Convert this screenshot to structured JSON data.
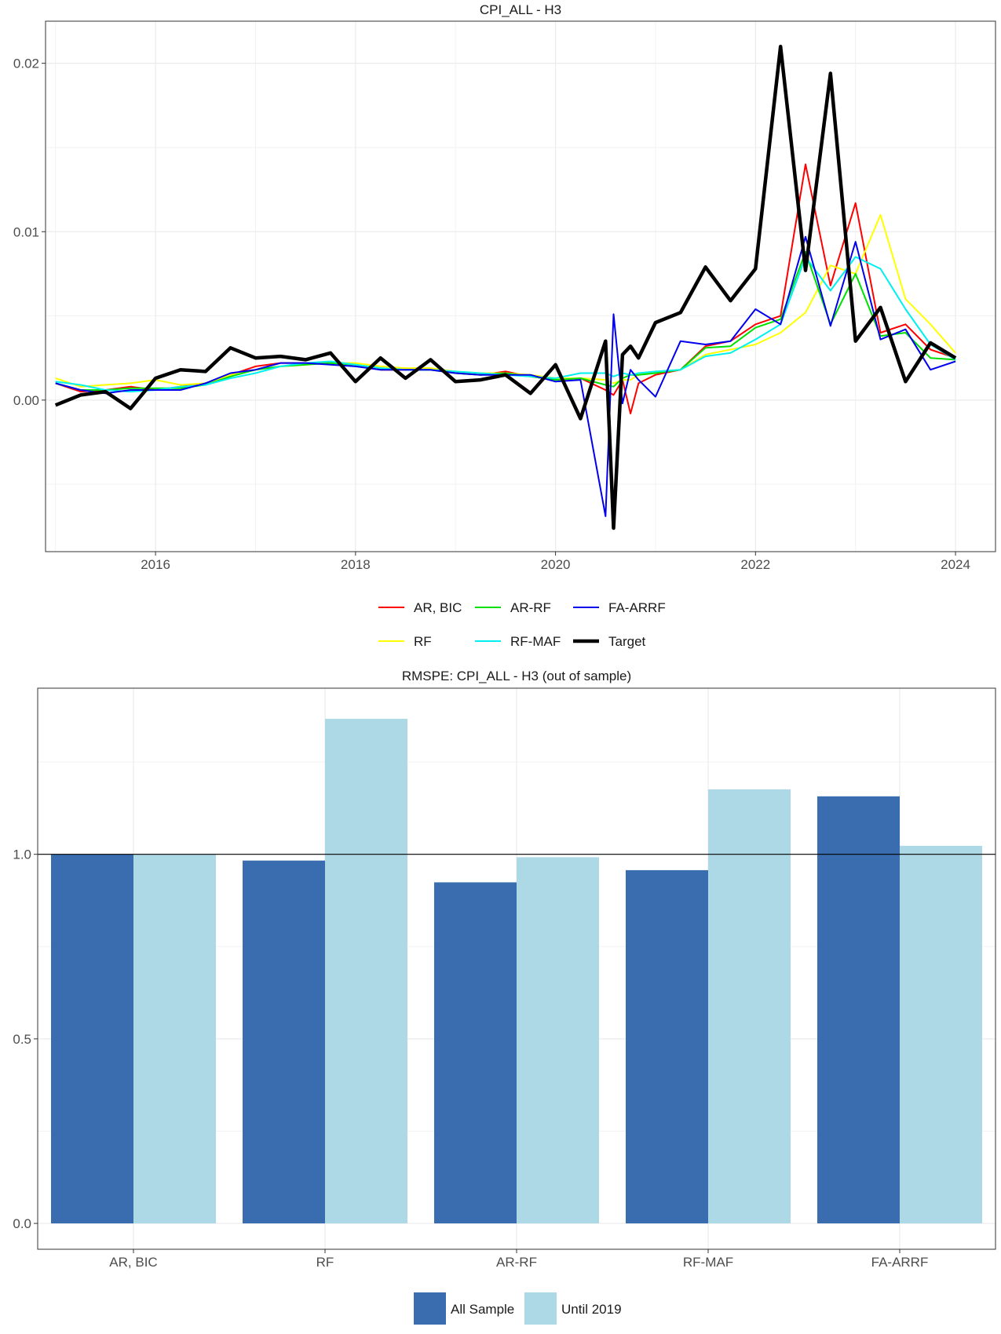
{
  "chart_data": [
    {
      "type": "line",
      "title": "CPI_ALL - H3",
      "xlabel": "",
      "ylabel": "",
      "xlim": [
        2014.9,
        2024.4
      ],
      "ylim": [
        -0.009,
        0.0225
      ],
      "x_ticks": [
        2016,
        2018,
        2020,
        2022,
        2024
      ],
      "x_tick_labels": [
        "2016",
        "2018",
        "2020",
        "2022",
        "2024"
      ],
      "y_ticks": [
        0.0,
        0.01,
        0.02
      ],
      "y_tick_labels": [
        "0.00",
        "0.01",
        "0.02"
      ],
      "grid": true,
      "legend_position": "bottom",
      "x": [
        2015.0,
        2015.25,
        2015.5,
        2015.75,
        2016.0,
        2016.25,
        2016.5,
        2016.75,
        2017.0,
        2017.25,
        2017.5,
        2017.75,
        2018.0,
        2018.25,
        2018.5,
        2018.75,
        2019.0,
        2019.25,
        2019.5,
        2019.75,
        2020.0,
        2020.25,
        2020.5,
        2020.58,
        2020.67,
        2020.75,
        2020.83,
        2021.0,
        2021.25,
        2021.5,
        2021.75,
        2022.0,
        2022.25,
        2022.5,
        2022.75,
        2023.0,
        2023.25,
        2023.5,
        2023.75,
        2024.0
      ],
      "series": [
        {
          "name": "AR, BIC",
          "color": "#ff0000",
          "width": 2,
          "values": [
            0.001,
            0.0005,
            0.0006,
            0.0008,
            0.0006,
            0.0008,
            0.001,
            0.0015,
            0.002,
            0.0022,
            0.0022,
            0.0022,
            0.0021,
            0.0018,
            0.0018,
            0.0018,
            0.0016,
            0.0015,
            0.0017,
            0.0014,
            0.0012,
            0.0013,
            0.0006,
            0.0003,
            0.0012,
            -0.0008,
            0.001,
            0.0015,
            0.0018,
            0.0032,
            0.0035,
            0.0045,
            0.005,
            0.014,
            0.0068,
            0.0117,
            0.004,
            0.0045,
            0.003,
            0.0025
          ]
        },
        {
          "name": "RF",
          "color": "#ffff00",
          "width": 2,
          "values": [
            0.0013,
            0.0008,
            0.0009,
            0.001,
            0.0012,
            0.0009,
            0.001,
            0.0015,
            0.0018,
            0.002,
            0.0021,
            0.0022,
            0.0022,
            0.002,
            0.0019,
            0.0019,
            0.0017,
            0.0016,
            0.0016,
            0.0015,
            0.0013,
            0.0013,
            0.0012,
            0.001,
            0.0012,
            0.0012,
            0.0015,
            0.0017,
            0.0018,
            0.0027,
            0.003,
            0.0033,
            0.004,
            0.0052,
            0.008,
            0.0075,
            0.011,
            0.006,
            0.0045,
            0.0028
          ]
        },
        {
          "name": "AR-RF",
          "color": "#00e000",
          "width": 2,
          "values": [
            0.001,
            0.0006,
            0.0006,
            0.0007,
            0.0007,
            0.0007,
            0.0009,
            0.0014,
            0.0018,
            0.002,
            0.0021,
            0.0022,
            0.0021,
            0.0019,
            0.0018,
            0.0018,
            0.0016,
            0.0015,
            0.0016,
            0.0014,
            0.0012,
            0.0013,
            0.0009,
            0.0008,
            0.0013,
            0.0015,
            0.0015,
            0.0016,
            0.0018,
            0.0031,
            0.0032,
            0.0043,
            0.0048,
            0.0088,
            0.0045,
            0.0075,
            0.0038,
            0.004,
            0.0025,
            0.0024
          ]
        },
        {
          "name": "RF-MAF",
          "color": "#00f0f0",
          "width": 2,
          "values": [
            0.0011,
            0.0009,
            0.0006,
            0.0005,
            0.0006,
            0.0008,
            0.0009,
            0.0013,
            0.0016,
            0.002,
            0.0022,
            0.0023,
            0.0021,
            0.0019,
            0.0018,
            0.0018,
            0.0017,
            0.0016,
            0.0015,
            0.0014,
            0.0013,
            0.0016,
            0.0016,
            0.0014,
            0.0016,
            0.0015,
            0.0016,
            0.0017,
            0.0018,
            0.0026,
            0.0028,
            0.0036,
            0.0045,
            0.0085,
            0.0065,
            0.0085,
            0.0078,
            0.0054,
            0.0033,
            0.0024
          ]
        },
        {
          "name": "FA-ARRF",
          "color": "#0000ee",
          "width": 2,
          "values": [
            0.001,
            0.0006,
            0.0004,
            0.0006,
            0.0006,
            0.0006,
            0.001,
            0.0016,
            0.0018,
            0.0022,
            0.0022,
            0.0021,
            0.002,
            0.0018,
            0.0018,
            0.0018,
            0.0016,
            0.0015,
            0.0015,
            0.0015,
            0.0011,
            0.0012,
            -0.0069,
            0.0051,
            -0.0002,
            0.0018,
            0.0012,
            0.0002,
            0.0035,
            0.0033,
            0.0035,
            0.0054,
            0.0045,
            0.0097,
            0.0044,
            0.0094,
            0.0036,
            0.0042,
            0.0018,
            0.0023
          ]
        },
        {
          "name": "Target",
          "color": "#000000",
          "width": 4.5,
          "values": [
            -0.0003,
            0.0003,
            0.0005,
            -0.0005,
            0.0013,
            0.0018,
            0.0017,
            0.0031,
            0.0025,
            0.0026,
            0.0024,
            0.0028,
            0.0011,
            0.0025,
            0.0013,
            0.0024,
            0.0011,
            0.0012,
            0.0015,
            0.0004,
            0.0021,
            -0.0011,
            0.0035,
            -0.0076,
            0.0027,
            0.0032,
            0.0025,
            0.0046,
            0.0052,
            0.0079,
            0.0059,
            0.0078,
            0.021,
            0.0077,
            0.0194,
            0.0035,
            0.0055,
            0.0011,
            0.0034,
            0.0025
          ]
        }
      ]
    },
    {
      "type": "bar",
      "title": "RMSPE: CPI_ALL - H3 (out of sample)",
      "xlabel": "",
      "ylabel": "",
      "categories": [
        "AR, BIC",
        "RF",
        "AR-RF",
        "RF-MAF",
        "FA-ARRF"
      ],
      "ylim": [
        -0.07,
        1.45
      ],
      "y_ticks": [
        0.0,
        0.5,
        1.0
      ],
      "y_tick_labels": [
        "0.0",
        "0.5",
        "1.0"
      ],
      "reference_line": 1.0,
      "grid": true,
      "legend_position": "bottom",
      "series": [
        {
          "name": "All Sample",
          "color": "#3a6db0",
          "values": [
            1.0,
            0.983,
            0.924,
            0.957,
            1.157
          ]
        },
        {
          "name": "Until 2019",
          "color": "#add8e6",
          "values": [
            1.0,
            1.367,
            0.992,
            1.176,
            1.023
          ]
        }
      ]
    }
  ]
}
